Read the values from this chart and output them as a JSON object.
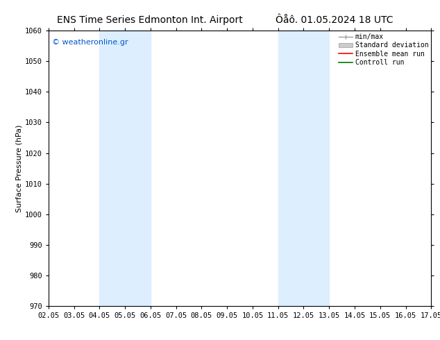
{
  "title_left": "ENS Time Series Edmonton Int. Airport",
  "title_right": "Ôåô. 01.05.2024 18 UTC",
  "ylabel": "Surface Pressure (hPa)",
  "ylim": [
    970,
    1060
  ],
  "yticks": [
    970,
    980,
    990,
    1000,
    1010,
    1020,
    1030,
    1040,
    1050,
    1060
  ],
  "xtick_labels": [
    "02.05",
    "03.05",
    "04.05",
    "05.05",
    "06.05",
    "07.05",
    "08.05",
    "09.05",
    "10.05",
    "11.05",
    "12.05",
    "13.05",
    "14.05",
    "15.05",
    "16.05",
    "17.05"
  ],
  "shaded_bands": [
    {
      "x_start": "04.05",
      "x_end": "06.05"
    },
    {
      "x_start": "11.05",
      "x_end": "13.05"
    }
  ],
  "shaded_color": "#ddeeff",
  "watermark_text": "© weatheronline.gr",
  "watermark_color": "#0055cc",
  "legend_entries": [
    {
      "label": "min/max",
      "color": "#aaaaaa",
      "style": "line_with_caps"
    },
    {
      "label": "Standard deviation",
      "color": "#cccccc",
      "style": "filled_box"
    },
    {
      "label": "Ensemble mean run",
      "color": "#ff0000",
      "style": "line"
    },
    {
      "label": "Controll run",
      "color": "#008800",
      "style": "line"
    }
  ],
  "background_color": "#ffffff",
  "title_fontsize": 10,
  "axis_fontsize": 8,
  "tick_fontsize": 7.5,
  "legend_fontsize": 7,
  "watermark_fontsize": 8
}
